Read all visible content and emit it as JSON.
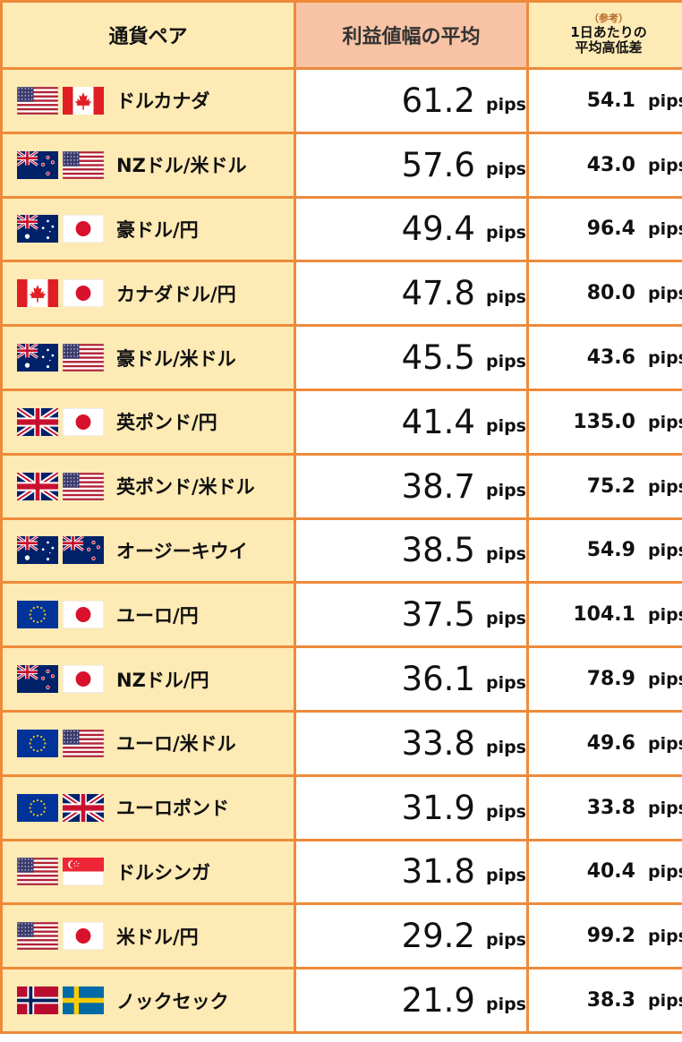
{
  "headers": {
    "pair": "通貨ペア",
    "profit": "利益値幅の平均",
    "range_note": "（参考）",
    "range_line1": "1日あたりの",
    "range_line2": "平均高低差"
  },
  "unit": "pips",
  "rows": [
    {
      "flags": [
        "us-flag-icon",
        "canada-flag-icon"
      ],
      "pair": "ドルカナダ",
      "profit": "61.2",
      "range": "54.1"
    },
    {
      "flags": [
        "new-zealand-flag-icon",
        "us-flag-icon"
      ],
      "pair": "NZドル/米ドル",
      "profit": "57.6",
      "range": "43.0"
    },
    {
      "flags": [
        "australia-flag-icon",
        "japan-flag-icon"
      ],
      "pair": "豪ドル/円",
      "profit": "49.4",
      "range": "96.4"
    },
    {
      "flags": [
        "canada-flag-icon",
        "japan-flag-icon"
      ],
      "pair": "カナダドル/円",
      "profit": "47.8",
      "range": "80.0"
    },
    {
      "flags": [
        "australia-flag-icon",
        "us-flag-icon"
      ],
      "pair": "豪ドル/米ドル",
      "profit": "45.5",
      "range": "43.6"
    },
    {
      "flags": [
        "uk-flag-icon",
        "japan-flag-icon"
      ],
      "pair": "英ポンド/円",
      "profit": "41.4",
      "range": "135.0"
    },
    {
      "flags": [
        "uk-flag-icon",
        "us-flag-icon"
      ],
      "pair": "英ポンド/米ドル",
      "profit": "38.7",
      "range": "75.2"
    },
    {
      "flags": [
        "australia-flag-icon",
        "new-zealand-flag-icon"
      ],
      "pair": "オージーキウイ",
      "profit": "38.5",
      "range": "54.9"
    },
    {
      "flags": [
        "eu-flag-icon",
        "japan-flag-icon"
      ],
      "pair": "ユーロ/円",
      "profit": "37.5",
      "range": "104.1"
    },
    {
      "flags": [
        "new-zealand-flag-icon",
        "japan-flag-icon"
      ],
      "pair": "NZドル/円",
      "profit": "36.1",
      "range": "78.9"
    },
    {
      "flags": [
        "eu-flag-icon",
        "us-flag-icon"
      ],
      "pair": "ユーロ/米ドル",
      "profit": "33.8",
      "range": "49.6"
    },
    {
      "flags": [
        "eu-flag-icon",
        "uk-flag-icon"
      ],
      "pair": "ユーロポンド",
      "profit": "31.9",
      "range": "33.8"
    },
    {
      "flags": [
        "us-flag-icon",
        "singapore-flag-icon"
      ],
      "pair": "ドルシンガ",
      "profit": "31.8",
      "range": "40.4"
    },
    {
      "flags": [
        "us-flag-icon",
        "japan-flag-icon"
      ],
      "pair": "米ドル/円",
      "profit": "29.2",
      "range": "99.2"
    },
    {
      "flags": [
        "norway-flag-icon",
        "sweden-flag-icon"
      ],
      "pair": "ノックセック",
      "profit": "21.9",
      "range": "38.3"
    }
  ]
}
